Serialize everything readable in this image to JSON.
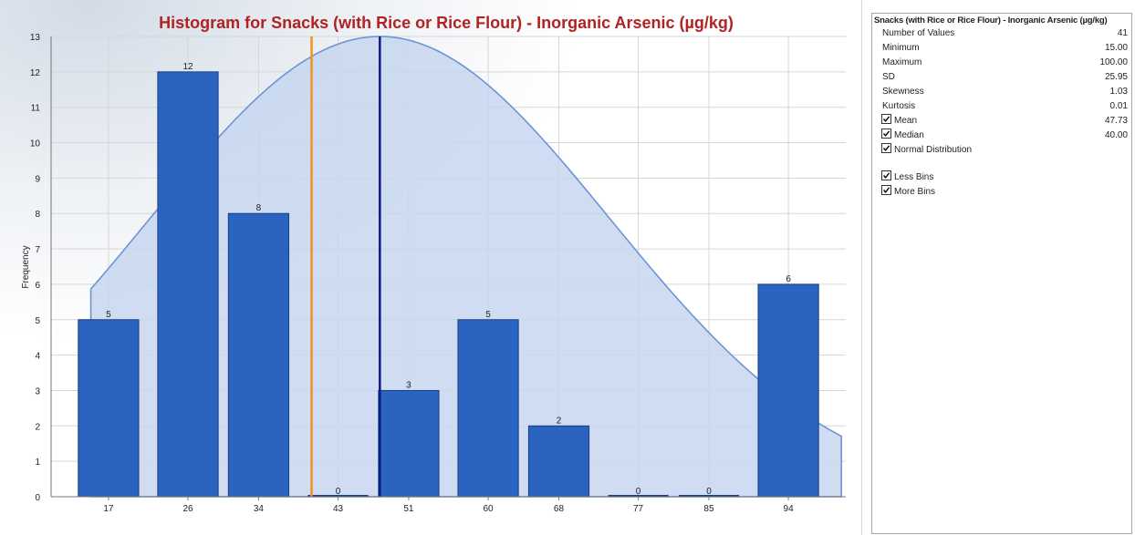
{
  "chart_data": {
    "type": "bar",
    "title": "Histogram for Snacks (with Rice or Rice Flour) - Inorganic Arsenic (µg/kg)",
    "xlabel": "",
    "ylabel": "Frequency",
    "categories": [
      "17",
      "26",
      "34",
      "43",
      "51",
      "60",
      "68",
      "77",
      "85",
      "94"
    ],
    "values": [
      5,
      12,
      8,
      0,
      3,
      5,
      2,
      0,
      0,
      6
    ],
    "data_labels": [
      "5",
      "12",
      "8",
      "0",
      "3",
      "5",
      "2",
      "0",
      "0",
      "6"
    ],
    "bin_centers": [
      17,
      26,
      34,
      43,
      51,
      60,
      68,
      77,
      85,
      94
    ],
    "yticks": [
      "0",
      "1",
      "2",
      "3",
      "4",
      "5",
      "6",
      "7",
      "8",
      "9",
      "10",
      "11",
      "12",
      "13"
    ],
    "ylim": [
      0,
      13
    ],
    "xlim": [
      10.5,
      100.5
    ],
    "grid": true,
    "mean_line": 47.73,
    "median_line": 40.0,
    "normal_curve": {
      "mean": 47.73,
      "sd": 25.95,
      "peak": 13,
      "x_start": 15,
      "x_end": 100
    },
    "colors": {
      "bar": "#2a63c0",
      "bar_edge": "#1a3f80",
      "mean_line": "#0a1a8a",
      "median_line": "#f0941e",
      "curve_fill": "#c7d6ee",
      "curve_stroke": "#6b95d6",
      "title": "#b22222",
      "grid": "#d6d6d6"
    }
  },
  "stats_panel": {
    "title": "Snacks (with Rice or Rice Flour) - Inorganic Arsenic (µg/kg)",
    "rows": [
      {
        "label": "Number of Values",
        "value": "41"
      },
      {
        "label": "Minimum",
        "value": "15.00"
      },
      {
        "label": "Maximum",
        "value": "100.00"
      },
      {
        "label": "SD",
        "value": "25.95"
      },
      {
        "label": "Skewness",
        "value": "1.03"
      },
      {
        "label": "Kurtosis",
        "value": "0.01"
      }
    ],
    "mean": {
      "label": "Mean",
      "value": "47.73",
      "checked": true
    },
    "median": {
      "label": "Median",
      "value": "40.00",
      "checked": true
    },
    "normal": {
      "label": "Normal Distribution",
      "checked": true
    },
    "less_bins": {
      "label": "Less Bins",
      "checked": true
    },
    "more_bins": {
      "label": "More Bins",
      "checked": true
    }
  }
}
